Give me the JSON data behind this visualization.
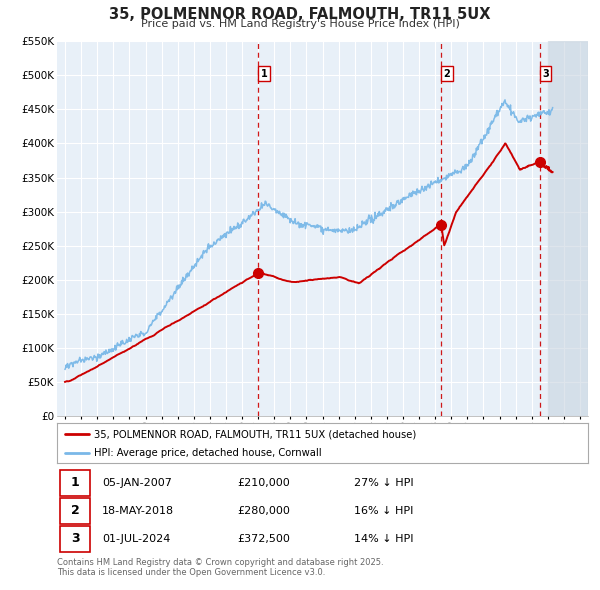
{
  "title": "35, POLMENNOR ROAD, FALMOUTH, TR11 5UX",
  "subtitle": "Price paid vs. HM Land Registry's House Price Index (HPI)",
  "hpi_color": "#7ab8e8",
  "price_color": "#cc0000",
  "background_color": "#e8f0f8",
  "grid_color": "#ffffff",
  "ylim": [
    0,
    550000
  ],
  "yticks": [
    0,
    50000,
    100000,
    150000,
    200000,
    250000,
    300000,
    350000,
    400000,
    450000,
    500000,
    550000
  ],
  "ytick_labels": [
    "£0",
    "£50K",
    "£100K",
    "£150K",
    "£200K",
    "£250K",
    "£300K",
    "£350K",
    "£400K",
    "£450K",
    "£500K",
    "£550K"
  ],
  "xlim_start": 1994.5,
  "xlim_end": 2027.5,
  "shade_start": 2007.0,
  "shade_end": 2025.0,
  "future_start": 2025.0,
  "transactions": [
    {
      "date_num": 2007.014,
      "price": 210000,
      "label": "1"
    },
    {
      "date_num": 2018.38,
      "price": 280000,
      "label": "2"
    },
    {
      "date_num": 2024.5,
      "price": 372500,
      "label": "3"
    }
  ],
  "legend_entries": [
    {
      "label": "35, POLMENNOR ROAD, FALMOUTH, TR11 5UX (detached house)",
      "color": "#cc0000"
    },
    {
      "label": "HPI: Average price, detached house, Cornwall",
      "color": "#7ab8e8"
    }
  ],
  "table_rows": [
    {
      "num": "1",
      "date": "05-JAN-2007",
      "price": "£210,000",
      "hpi": "27% ↓ HPI"
    },
    {
      "num": "2",
      "date": "18-MAY-2018",
      "price": "£280,000",
      "hpi": "16% ↓ HPI"
    },
    {
      "num": "3",
      "date": "01-JUL-2024",
      "price": "£372,500",
      "hpi": "14% ↓ HPI"
    }
  ],
  "footnote": "Contains HM Land Registry data © Crown copyright and database right 2025.\nThis data is licensed under the Open Government Licence v3.0."
}
